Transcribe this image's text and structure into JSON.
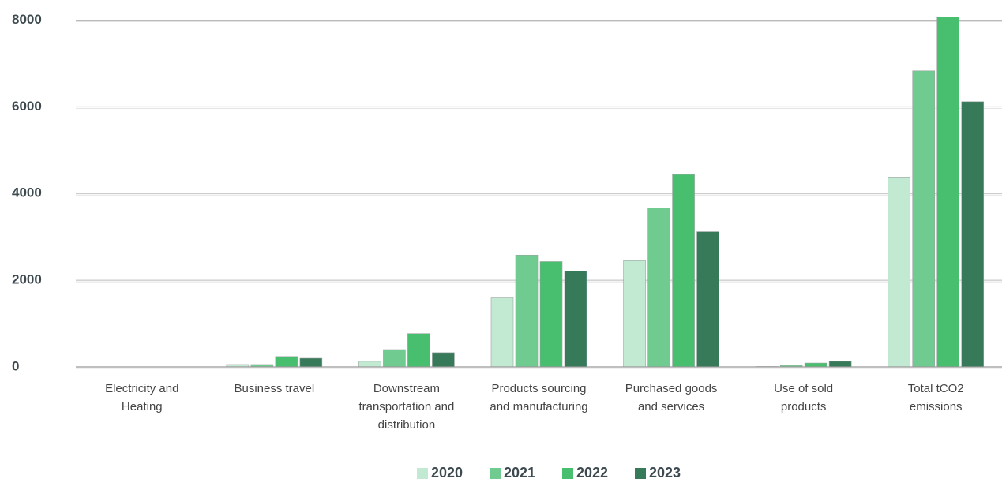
{
  "chart_data": {
    "type": "bar",
    "categories": [
      "Electricity and Heating",
      "Business travel",
      "Downstream transportation and distribution",
      "Products sourcing and manufacturing",
      "Purchased goods and services",
      "Use of sold products",
      "Total tCO2 emissions"
    ],
    "series": [
      {
        "name": "2020",
        "color": "#c2e9d1",
        "values": [
          0,
          55,
          130,
          1610,
          2450,
          10,
          4380
        ]
      },
      {
        "name": "2021",
        "color": "#6fcb8f",
        "values": [
          0,
          55,
          400,
          2580,
          3670,
          35,
          6830
        ]
      },
      {
        "name": "2022",
        "color": "#48bf6f",
        "values": [
          0,
          240,
          770,
          2430,
          4440,
          90,
          8070
        ]
      },
      {
        "name": "2023",
        "color": "#367a5a",
        "values": [
          0,
          200,
          330,
          2210,
          3120,
          130,
          6120
        ]
      }
    ],
    "ylim": [
      0,
      8100
    ],
    "yticks": [
      0,
      2000,
      4000,
      6000,
      8000
    ],
    "grid": true,
    "legend": "bottom"
  }
}
